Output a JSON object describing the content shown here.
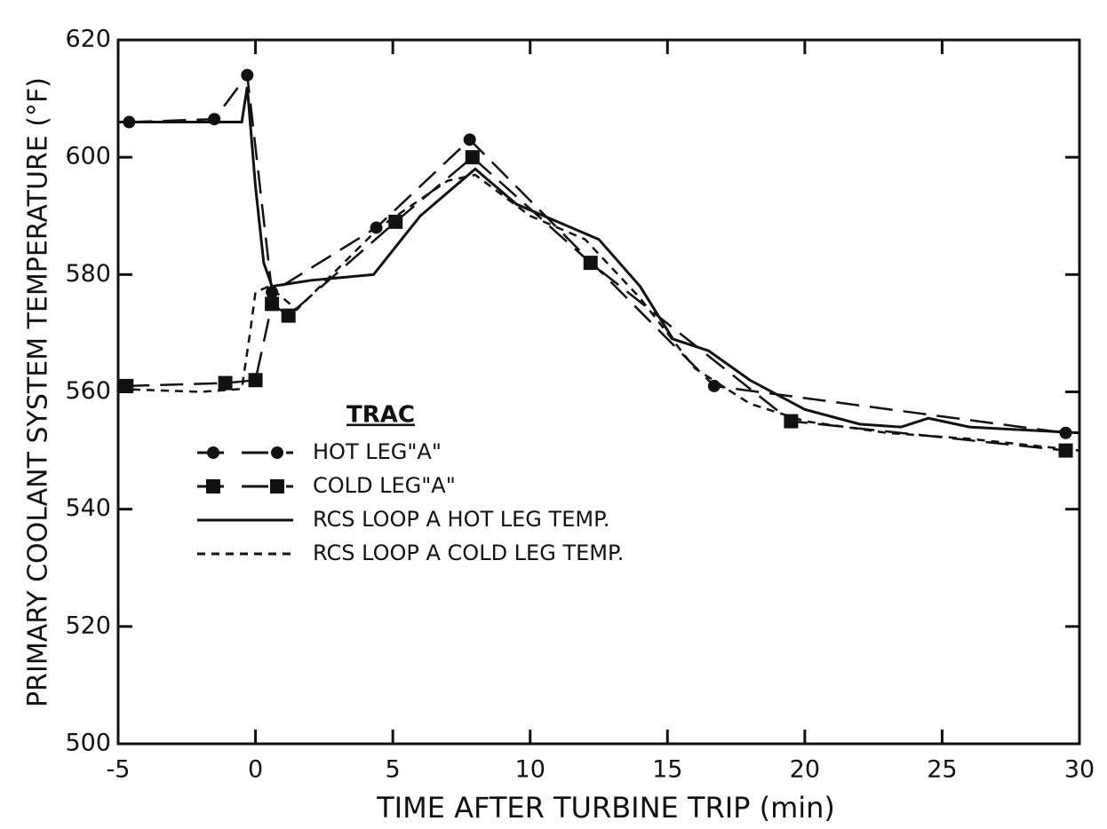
{
  "chart_data": {
    "type": "line",
    "ylabel": "PRIMARY COOLANT SYSTEM TEMPERATURE (°F)",
    "xlabel": "TIME AFTER TURBINE TRIP (min)",
    "legend_title": "TRAC",
    "legend": "center-left",
    "xlim": [
      -5,
      30
    ],
    "xticks": [
      -5,
      0,
      5,
      10,
      15,
      20,
      25,
      30
    ],
    "ylim": [
      500,
      620
    ],
    "yticks": [
      500,
      520,
      540,
      560,
      580,
      600,
      620
    ],
    "series": [
      {
        "name": "HOT LEG\"A\"",
        "color": "#111111",
        "style": "dashed",
        "marker": "circle",
        "x": [
          -4.6,
          -1.5,
          -0.3,
          0.6,
          4.4,
          7.8,
          16.7,
          29.5
        ],
        "values": [
          606,
          606.5,
          614,
          577,
          588,
          603,
          561,
          553
        ]
      },
      {
        "name": "COLD LEG\"A\"",
        "color": "#111111",
        "style": "dashed",
        "marker": "square",
        "x": [
          -4.7,
          -1.1,
          0,
          0.6,
          1.2,
          5.1,
          7.9,
          12.2,
          19.5,
          29.5
        ],
        "values": [
          561,
          561.5,
          562,
          575,
          573,
          589,
          600,
          582,
          555,
          550
        ]
      },
      {
        "name": "RCS LOOP A HOT LEG TEMP.",
        "color": "#111111",
        "style": "solid",
        "x": [
          -5,
          -0.5,
          -0.3,
          0,
          0.3,
          0.6,
          2,
          4.3,
          6,
          8,
          9.5,
          11,
          12.5,
          14,
          15.2,
          16.5,
          18,
          20,
          22,
          23.5,
          24.5,
          26,
          30
        ],
        "values": [
          606,
          606,
          612,
          595,
          582,
          578,
          579,
          580,
          590,
          598,
          592,
          589,
          586,
          578,
          569,
          567,
          562,
          557,
          554.5,
          554,
          555.5,
          554,
          553
        ]
      },
      {
        "name": "RCS LOOP A COLD LEG TEMP.",
        "color": "#111111",
        "style": "dotted",
        "x": [
          -5,
          -2,
          -0.5,
          -0.2,
          0,
          0.5,
          1.5,
          4.5,
          7,
          8,
          10,
          12,
          14,
          16,
          18,
          20,
          23,
          26,
          30
        ],
        "values": [
          560.5,
          560,
          560.5,
          570,
          577,
          578,
          574,
          588,
          596,
          597,
          590,
          586,
          576,
          564,
          558,
          555,
          553,
          552,
          550
        ]
      }
    ]
  }
}
